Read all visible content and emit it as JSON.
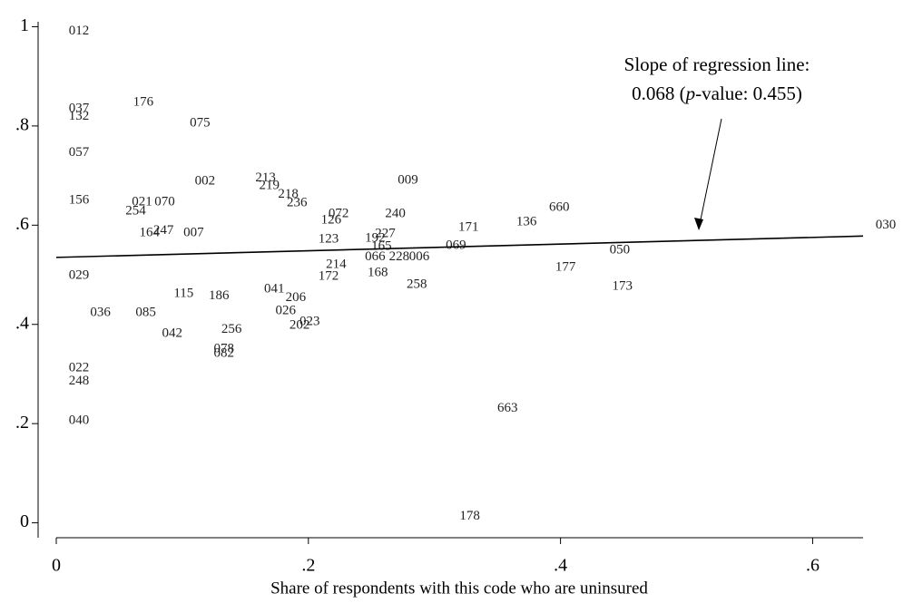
{
  "chart_data": {
    "type": "scatter",
    "x_label": "Share of respondents with this code who are uninsured",
    "annotation": {
      "line1": "Slope of regression line:",
      "line2": [
        "0.068 (",
        "p",
        "-value: 0.455)"
      ]
    },
    "xlim": [
      0,
      0.64
    ],
    "ylim": [
      -0.03,
      1.01
    ],
    "xticks": [
      0,
      {
        "value": 0.2,
        "label": ".2"
      },
      {
        "value": 0.4,
        "label": ".4"
      },
      {
        "value": 0.6,
        "label": ".6"
      }
    ],
    "yticks": [
      0,
      {
        "value": 0.2,
        "label": ".2"
      },
      {
        "value": 0.4,
        "label": ".4"
      },
      {
        "value": 0.6,
        "label": ".6"
      },
      {
        "value": 0.8,
        "label": ".8"
      },
      1
    ],
    "labels": [
      "012",
      "037",
      "132",
      "176",
      "075",
      "057",
      "002",
      "213",
      "219",
      "218",
      "236",
      "009",
      "156",
      "021",
      "070",
      "254",
      "072",
      "240",
      "660",
      "136",
      "171",
      "126",
      "164",
      "247",
      "007",
      "227",
      "192",
      "123",
      "069",
      "030",
      "165",
      "050",
      "066",
      "228",
      "006",
      "214",
      "177",
      "029",
      "168",
      "172",
      "258",
      "173",
      "041",
      "115",
      "186",
      "206",
      "036",
      "085",
      "026",
      "023",
      "202",
      "042",
      "256",
      "078",
      "082",
      "022",
      "248",
      "040",
      "663",
      "178"
    ],
    "x": [
      0.018,
      0.018,
      0.018,
      0.069,
      0.114,
      0.018,
      0.118,
      0.166,
      0.169,
      0.184,
      0.191,
      0.279,
      0.018,
      0.068,
      0.086,
      0.063,
      0.224,
      0.269,
      0.399,
      0.373,
      0.327,
      0.218,
      0.074,
      0.085,
      0.109,
      0.261,
      0.253,
      0.216,
      0.317,
      0.658,
      0.258,
      0.447,
      0.253,
      0.272,
      0.288,
      0.222,
      0.404,
      0.018,
      0.255,
      0.216,
      0.286,
      0.449,
      0.173,
      0.101,
      0.129,
      0.19,
      0.035,
      0.071,
      0.182,
      0.201,
      0.193,
      0.092,
      0.139,
      0.133,
      0.133,
      0.018,
      0.018,
      0.018,
      0.358,
      0.328
    ],
    "y": [
      0.991,
      0.834,
      0.819,
      0.847,
      0.805,
      0.746,
      0.688,
      0.695,
      0.679,
      0.662,
      0.644,
      0.69,
      0.65,
      0.646,
      0.646,
      0.628,
      0.622,
      0.622,
      0.635,
      0.606,
      0.595,
      0.61,
      0.584,
      0.589,
      0.584,
      0.582,
      0.573,
      0.571,
      0.558,
      0.6,
      0.557,
      0.549,
      0.536,
      0.536,
      0.536,
      0.52,
      0.515,
      0.498,
      0.504,
      0.496,
      0.48,
      0.476,
      0.471,
      0.462,
      0.457,
      0.453,
      0.423,
      0.423,
      0.427,
      0.405,
      0.398,
      0.381,
      0.389,
      0.35,
      0.341,
      0.312,
      0.285,
      0.206,
      0.23,
      0.013
    ],
    "regression": {
      "x": [
        0,
        0.64
      ],
      "y": [
        0.535,
        0.578
      ]
    }
  }
}
